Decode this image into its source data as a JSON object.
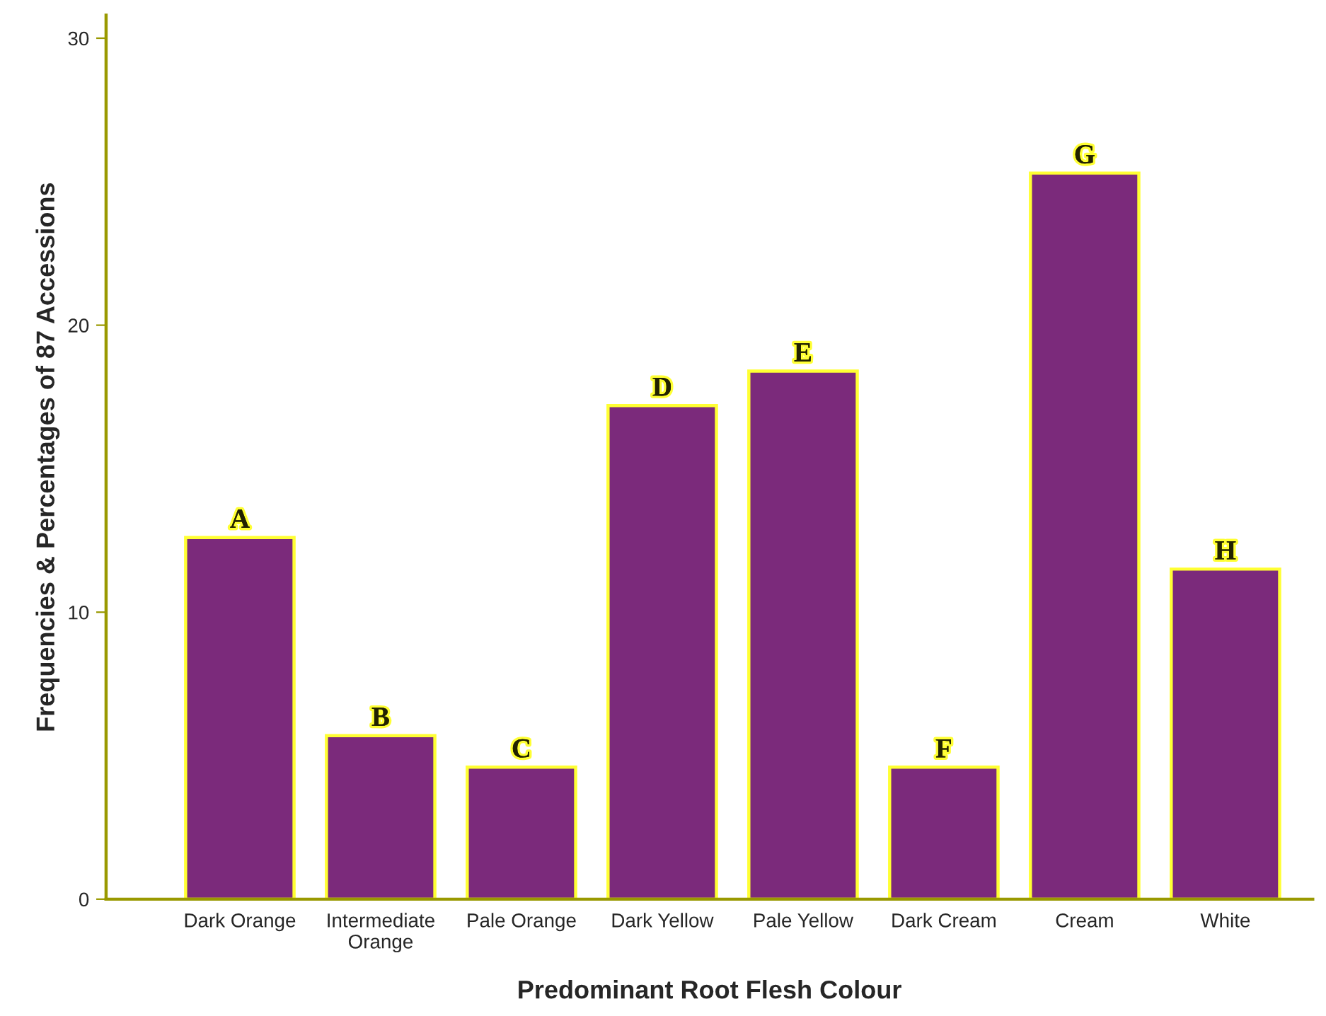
{
  "chart_data": {
    "type": "bar",
    "xlabel": "Predominant Root Flesh Colour",
    "ylabel": "Frequencies & Percentages of 87 Accessions",
    "categories": [
      "Dark Orange",
      "Intermediate\nOrange",
      "Pale Orange",
      "Dark Yellow",
      "Pale Yellow",
      "Dark Cream",
      "Cream",
      "White"
    ],
    "values": [
      12.6,
      5.7,
      4.6,
      17.2,
      18.4,
      4.6,
      25.3,
      11.5
    ],
    "color": "#7b2a7b",
    "ylim": [
      0,
      30.8
    ],
    "yticks": [
      0,
      10,
      20,
      30
    ],
    "grid": false,
    "annotations": [
      {
        "text": "A",
        "x": "Dark Orange",
        "y": 12.6
      },
      {
        "text": "B",
        "x": "Intermediate\nOrange",
        "y": 5.7
      },
      {
        "text": "C",
        "x": "Pale Orange",
        "y": 4.6
      },
      {
        "text": "D",
        "x": "Dark Yellow",
        "y": 17.2
      },
      {
        "text": "E",
        "x": "Pale Yellow",
        "y": 18.4
      },
      {
        "text": "F",
        "x": "Dark Cream",
        "y": 4.6
      },
      {
        "text": "G",
        "x": "Cream",
        "y": 25.3
      },
      {
        "text": "H",
        "x": "White",
        "y": 11.5
      }
    ]
  }
}
